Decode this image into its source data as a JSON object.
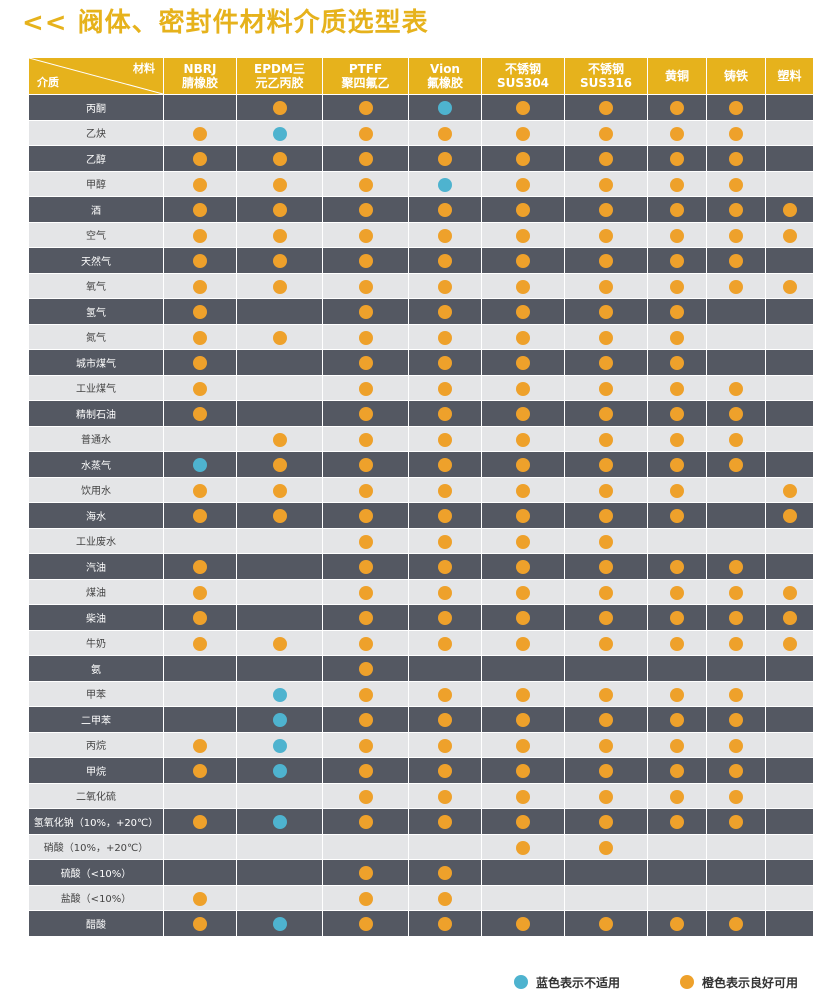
{
  "title": "<< 阀体、密封件材料介质选型表",
  "header": {
    "corner_material": "材料",
    "corner_medium": "介质",
    "columns": [
      {
        "l1": "NBRJ",
        "l2": "腈橡胶"
      },
      {
        "l1": "EPDM三",
        "l2": "元乙丙胶"
      },
      {
        "l1": "PTFF",
        "l2": "聚四氟乙"
      },
      {
        "l1": "Vion",
        "l2": "氟橡胶"
      },
      {
        "l1": "不锈钢",
        "l2": "SUS304"
      },
      {
        "l1": "不锈钢",
        "l2": "SUS316"
      },
      {
        "l1": "黄铜",
        "l2": ""
      },
      {
        "l1": "铸铁",
        "l2": ""
      },
      {
        "l1": "塑料",
        "l2": ""
      }
    ]
  },
  "colors": {
    "orange": "#eea12b",
    "blue": "#4eb3cf",
    "gold": "#e6b21c",
    "dark_row": "#545862",
    "light_row": "#e4e5e7"
  },
  "rows": [
    {
      "name": "丙酮",
      "cells": [
        "",
        "o",
        "o",
        "b",
        "o",
        "o",
        "o",
        "o",
        ""
      ]
    },
    {
      "name": "乙炔",
      "cells": [
        "o",
        "b",
        "o",
        "o",
        "o",
        "o",
        "o",
        "o",
        ""
      ]
    },
    {
      "name": "乙醇",
      "cells": [
        "o",
        "o",
        "o",
        "o",
        "o",
        "o",
        "o",
        "o",
        ""
      ]
    },
    {
      "name": "甲醇",
      "cells": [
        "o",
        "o",
        "o",
        "b",
        "o",
        "o",
        "o",
        "o",
        ""
      ]
    },
    {
      "name": "酒",
      "cells": [
        "o",
        "o",
        "o",
        "o",
        "o",
        "o",
        "o",
        "o",
        "o"
      ]
    },
    {
      "name": "空气",
      "cells": [
        "o",
        "o",
        "o",
        "o",
        "o",
        "o",
        "o",
        "o",
        "o"
      ]
    },
    {
      "name": "天然气",
      "cells": [
        "o",
        "o",
        "o",
        "o",
        "o",
        "o",
        "o",
        "o",
        ""
      ]
    },
    {
      "name": "氧气",
      "cells": [
        "o",
        "o",
        "o",
        "o",
        "o",
        "o",
        "o",
        "o",
        "o"
      ]
    },
    {
      "name": "氢气",
      "cells": [
        "o",
        "",
        "o",
        "o",
        "o",
        "o",
        "o",
        "",
        ""
      ]
    },
    {
      "name": "氮气",
      "cells": [
        "o",
        "o",
        "o",
        "o",
        "o",
        "o",
        "o",
        "",
        ""
      ]
    },
    {
      "name": "城市煤气",
      "cells": [
        "o",
        "",
        "o",
        "o",
        "o",
        "o",
        "o",
        "",
        ""
      ]
    },
    {
      "name": "工业煤气",
      "cells": [
        "o",
        "",
        "o",
        "o",
        "o",
        "o",
        "o",
        "o",
        ""
      ]
    },
    {
      "name": "精制石油",
      "cells": [
        "o",
        "",
        "o",
        "o",
        "o",
        "o",
        "o",
        "o",
        ""
      ]
    },
    {
      "name": "普通水",
      "cells": [
        "",
        "o",
        "o",
        "o",
        "o",
        "o",
        "o",
        "o",
        ""
      ]
    },
    {
      "name": "水蒸气",
      "cells": [
        "b",
        "o",
        "o",
        "o",
        "o",
        "o",
        "o",
        "o",
        ""
      ]
    },
    {
      "name": "饮用水",
      "cells": [
        "o",
        "o",
        "o",
        "o",
        "o",
        "o",
        "o",
        "",
        "o"
      ]
    },
    {
      "name": "海水",
      "cells": [
        "o",
        "o",
        "o",
        "o",
        "o",
        "o",
        "o",
        "",
        "o"
      ]
    },
    {
      "name": "工业废水",
      "cells": [
        "",
        "",
        "o",
        "o",
        "o",
        "o",
        "",
        "",
        ""
      ]
    },
    {
      "name": "汽油",
      "cells": [
        "o",
        "",
        "o",
        "o",
        "o",
        "o",
        "o",
        "o",
        ""
      ]
    },
    {
      "name": "煤油",
      "cells": [
        "o",
        "",
        "o",
        "o",
        "o",
        "o",
        "o",
        "o",
        "o"
      ]
    },
    {
      "name": "柴油",
      "cells": [
        "o",
        "",
        "o",
        "o",
        "o",
        "o",
        "o",
        "o",
        "o"
      ]
    },
    {
      "name": "牛奶",
      "cells": [
        "o",
        "o",
        "o",
        "o",
        "o",
        "o",
        "o",
        "o",
        "o"
      ]
    },
    {
      "name": "氨",
      "cells": [
        "",
        "",
        "o",
        "",
        "",
        "",
        "",
        "",
        ""
      ]
    },
    {
      "name": "甲苯",
      "cells": [
        "",
        "b",
        "o",
        "o",
        "o",
        "o",
        "o",
        "o",
        ""
      ]
    },
    {
      "name": "二甲苯",
      "cells": [
        "",
        "b",
        "o",
        "o",
        "o",
        "o",
        "o",
        "o",
        ""
      ]
    },
    {
      "name": "丙烷",
      "cells": [
        "o",
        "b",
        "o",
        "o",
        "o",
        "o",
        "o",
        "o",
        ""
      ]
    },
    {
      "name": "甲烷",
      "cells": [
        "o",
        "b",
        "o",
        "o",
        "o",
        "o",
        "o",
        "o",
        ""
      ]
    },
    {
      "name": "二氧化硫",
      "cells": [
        "",
        "",
        "o",
        "o",
        "o",
        "o",
        "o",
        "o",
        ""
      ]
    },
    {
      "name": "氢氧化钠（10%，+20℃）",
      "cells": [
        "o",
        "b",
        "o",
        "o",
        "o",
        "o",
        "o",
        "o",
        ""
      ]
    },
    {
      "name": "硝酸（10%，+20℃）",
      "cells": [
        "",
        "",
        "",
        "",
        "o",
        "o",
        "",
        "",
        ""
      ]
    },
    {
      "name": "硫酸（<10%）",
      "cells": [
        "",
        "",
        "o",
        "o",
        "",
        "",
        "",
        "",
        ""
      ]
    },
    {
      "name": "盐酸（<10%）",
      "cells": [
        "o",
        "",
        "o",
        "o",
        "",
        "",
        "",
        "",
        ""
      ]
    },
    {
      "name": "醋酸",
      "cells": [
        "o",
        "b",
        "o",
        "o",
        "o",
        "o",
        "o",
        "o",
        ""
      ]
    }
  ],
  "legend": {
    "blue_label": "蓝色表示不适用",
    "orange_label": "橙色表示良好可用"
  }
}
